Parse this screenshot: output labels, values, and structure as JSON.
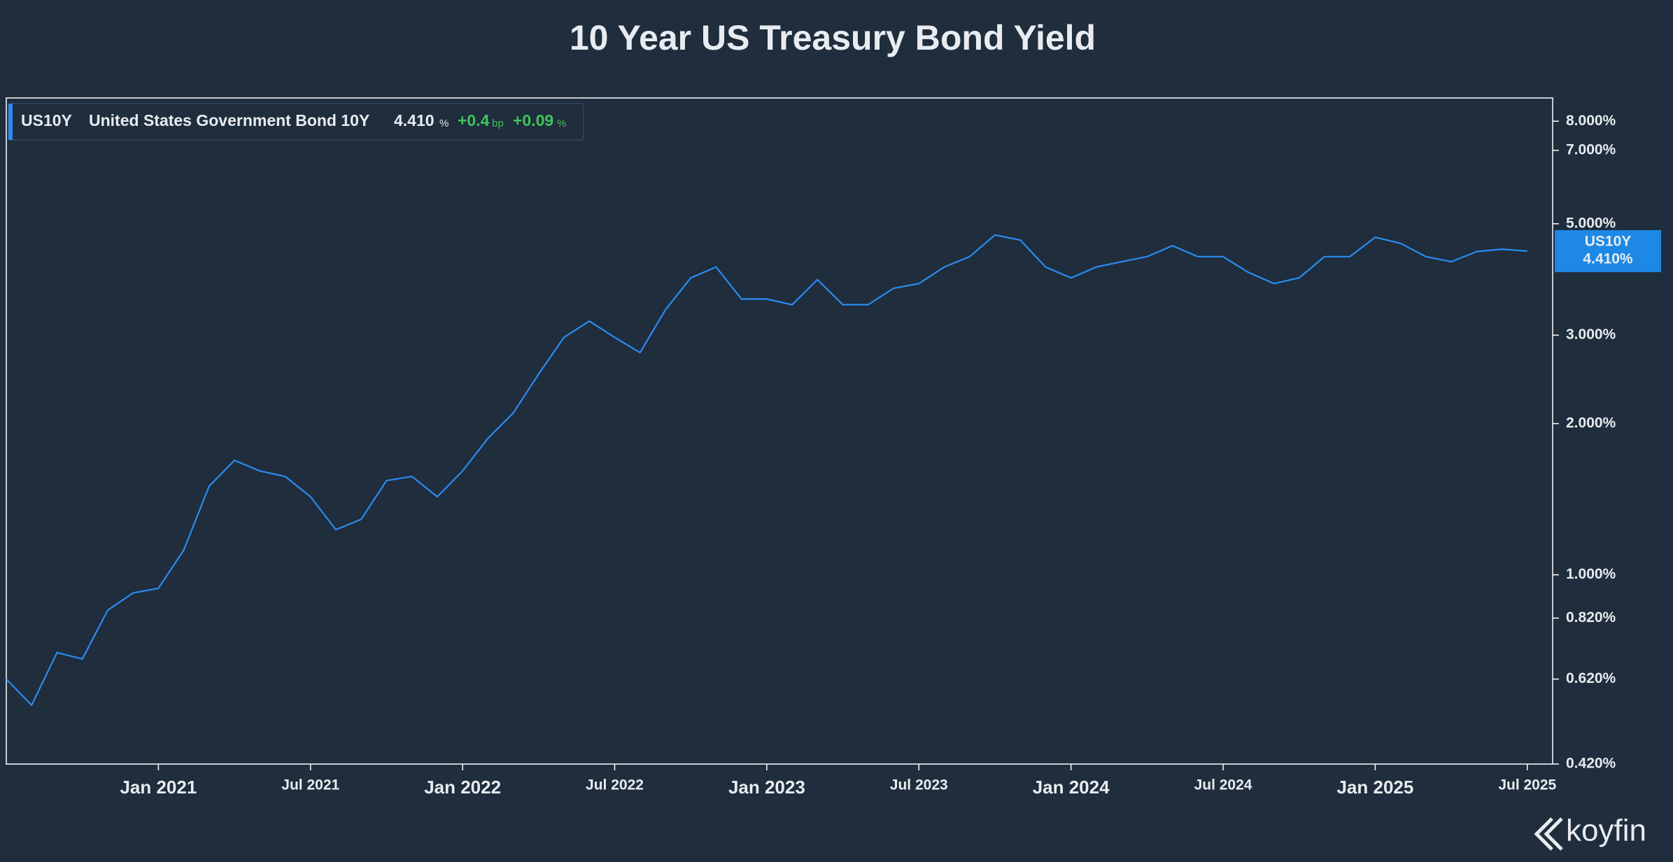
{
  "chart_data": {
    "type": "line",
    "title": "10 Year US Treasury Bond Yield",
    "header": {
      "symbol": "US10Y",
      "name": "United States Government Bond 10Y",
      "value": "4.410",
      "value_unit": "%",
      "change": "+0.4",
      "change_unit": "bp",
      "change_pct": "+0.09",
      "change_pct_unit": "%",
      "tag_value": "4.410%"
    },
    "brand": "koyfin",
    "x": [
      "2020-07",
      "2020-08",
      "2020-09",
      "2020-10",
      "2020-11",
      "2020-12",
      "2021-01",
      "2021-02",
      "2021-03",
      "2021-04",
      "2021-05",
      "2021-06",
      "2021-07",
      "2021-08",
      "2021-09",
      "2021-10",
      "2021-11",
      "2021-12",
      "2022-01",
      "2022-02",
      "2022-03",
      "2022-04",
      "2022-05",
      "2022-06",
      "2022-07",
      "2022-08",
      "2022-09",
      "2022-10",
      "2022-11",
      "2022-12",
      "2023-01",
      "2023-02",
      "2023-03",
      "2023-04",
      "2023-05",
      "2023-06",
      "2023-07",
      "2023-08",
      "2023-09",
      "2023-10",
      "2023-11",
      "2023-12",
      "2024-01",
      "2024-02",
      "2024-03",
      "2024-04",
      "2024-05",
      "2024-06",
      "2024-07",
      "2024-08",
      "2024-09",
      "2024-10",
      "2024-11",
      "2024-12",
      "2025-01",
      "2025-02",
      "2025-03",
      "2025-04",
      "2025-05",
      "2025-06",
      "2025-07"
    ],
    "values": [
      0.62,
      0.55,
      0.7,
      0.68,
      0.85,
      0.92,
      0.94,
      1.12,
      1.5,
      1.69,
      1.61,
      1.57,
      1.43,
      1.23,
      1.29,
      1.54,
      1.57,
      1.43,
      1.61,
      1.87,
      2.1,
      2.51,
      2.97,
      3.2,
      2.97,
      2.77,
      3.37,
      3.9,
      4.1,
      3.54,
      3.54,
      3.45,
      3.87,
      3.45,
      3.45,
      3.72,
      3.8,
      4.1,
      4.3,
      4.75,
      4.64,
      4.1,
      3.9,
      4.1,
      4.2,
      4.3,
      4.52,
      4.3,
      4.3,
      4.0,
      3.8,
      3.9,
      4.3,
      4.3,
      4.7,
      4.57,
      4.3,
      4.2,
      4.4,
      4.45,
      4.41
    ],
    "color": "#2a8cf0",
    "log_scale": true,
    "xlim": [
      "2020-07",
      "2025-08"
    ],
    "xticks": [
      {
        "value": "2021-01",
        "label": "Jan 2021"
      },
      {
        "value": "2021-07",
        "label": "Jul 2021"
      },
      {
        "value": "2022-01",
        "label": "Jan 2022"
      },
      {
        "value": "2022-07",
        "label": "Jul 2022"
      },
      {
        "value": "2023-01",
        "label": "Jan 2023"
      },
      {
        "value": "2023-07",
        "label": "Jul 2023"
      },
      {
        "value": "2024-01",
        "label": "Jan 2024"
      },
      {
        "value": "2024-07",
        "label": "Jul 2024"
      },
      {
        "value": "2025-01",
        "label": "Jan 2025"
      },
      {
        "value": "2025-07",
        "label": "Jul 2025"
      }
    ],
    "ylim": [
      0.42,
      8.9
    ],
    "yticks": [
      {
        "value": 0.42,
        "label": "0.420%"
      },
      {
        "value": 0.62,
        "label": "0.620%"
      },
      {
        "value": 0.82,
        "label": "0.820%"
      },
      {
        "value": 1,
        "label": "1.000%"
      },
      {
        "value": 2,
        "label": "2.000%"
      },
      {
        "value": 3,
        "label": "3.000%"
      },
      {
        "value": 5,
        "label": "5.000%"
      },
      {
        "value": 7,
        "label": "7.000%"
      },
      {
        "value": 8,
        "label": "8.000%"
      }
    ],
    "grid": false
  }
}
